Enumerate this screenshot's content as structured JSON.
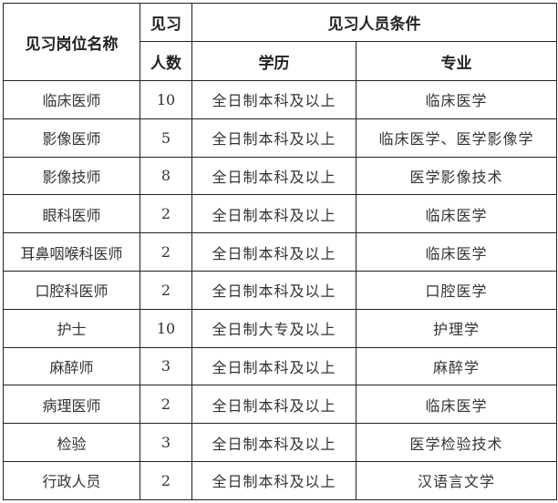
{
  "header": {
    "position": "见习岗位名称",
    "count_line1": "见习",
    "count_line2": "人数",
    "conditions": "见习人员条件",
    "education": "学历",
    "major": "专业"
  },
  "rows": [
    {
      "position": "临床医师",
      "count": "10",
      "education": "全日制本科及以上",
      "major": "临床医学"
    },
    {
      "position": "影像医师",
      "count": "5",
      "education": "全日制本科及以上",
      "major": "临床医学、医学影像学"
    },
    {
      "position": "影像技师",
      "count": "8",
      "education": "全日制本科及以上",
      "major": "医学影像技术"
    },
    {
      "position": "眼科医师",
      "count": "2",
      "education": "全日制本科及以上",
      "major": "临床医学"
    },
    {
      "position": "耳鼻咽喉科医师",
      "count": "2",
      "education": "全日制本科及以上",
      "major": "临床医学"
    },
    {
      "position": "口腔科医师",
      "count": "2",
      "education": "全日制本科及以上",
      "major": "口腔医学"
    },
    {
      "position": "护士",
      "count": "10",
      "education": "全日制大专及以上",
      "major": "护理学"
    },
    {
      "position": "麻醉师",
      "count": "3",
      "education": "全日制本科及以上",
      "major": "麻醉学"
    },
    {
      "position": "病理医师",
      "count": "2",
      "education": "全日制本科及以上",
      "major": "临床医学"
    },
    {
      "position": "检验",
      "count": "3",
      "education": "全日制本科及以上",
      "major": "医学检验技术"
    },
    {
      "position": "行政人员",
      "count": "2",
      "education": "全日制本科及以上",
      "major": "汉语言文学"
    }
  ]
}
